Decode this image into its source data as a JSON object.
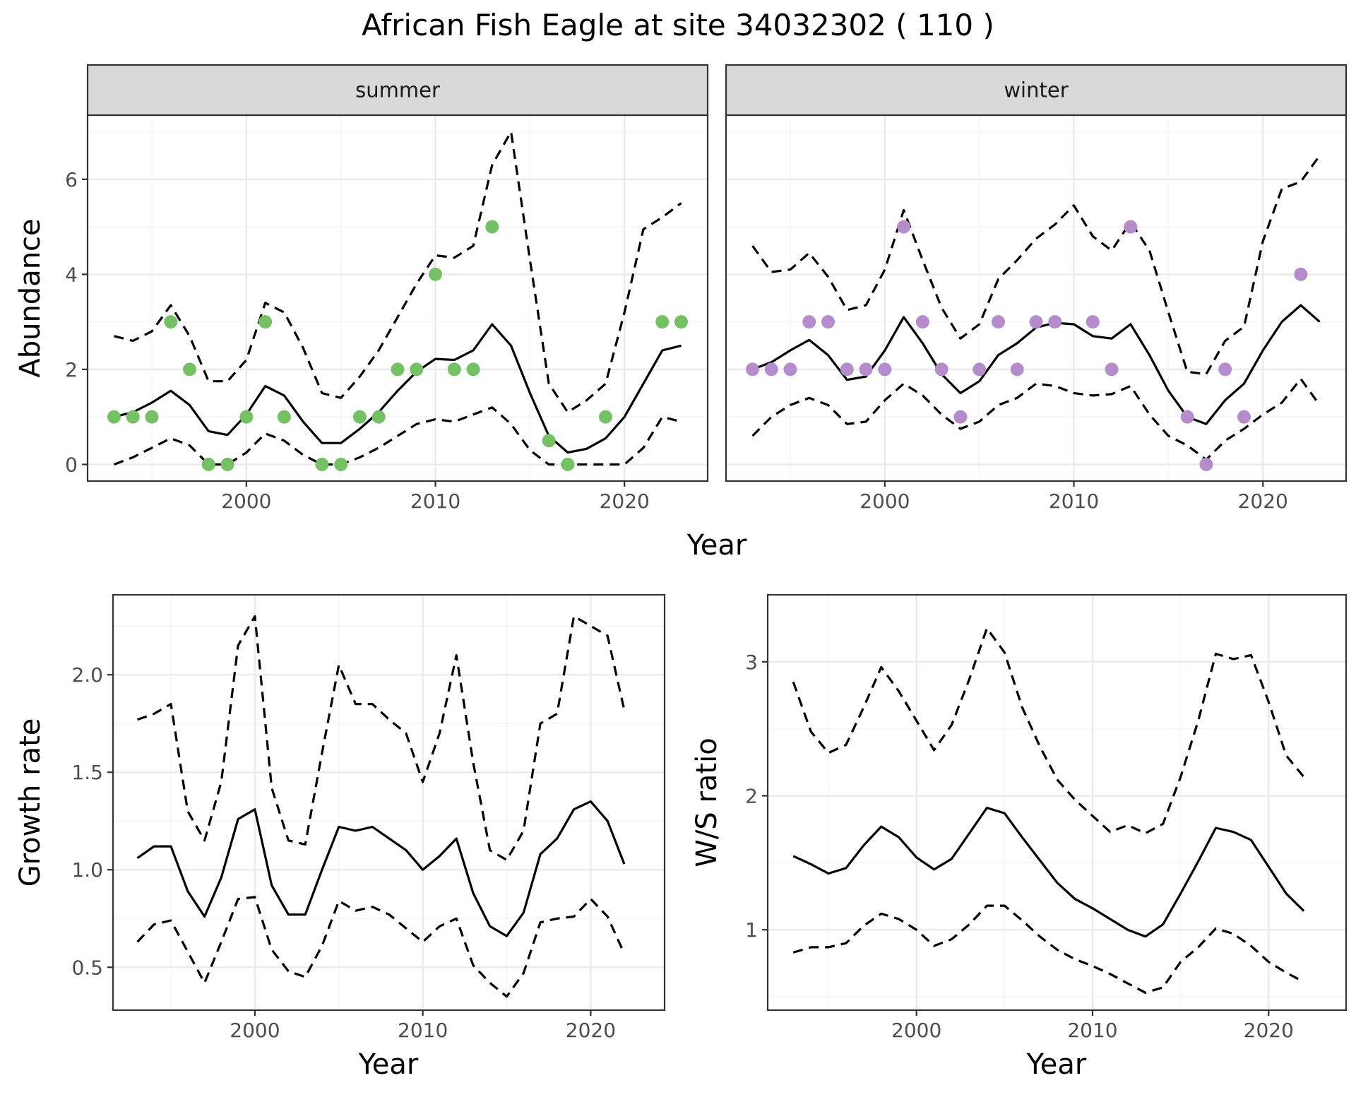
{
  "title": "African Fish Eagle at site 34032302 ( 110 )",
  "colors": {
    "summer_points": "#74c163",
    "winter_points": "#b48ccb",
    "lines": "#000000",
    "grid_major": "#ebebeb",
    "grid_minor": "#f5f5f5",
    "strip_fill": "#d9d9d9",
    "panel_border": "#333333"
  },
  "chart_data": [
    {
      "type": "line",
      "facet": "summer",
      "xlabel": "Year",
      "ylabel": "Abundance",
      "xlim": [
        1991.6,
        2024.4
      ],
      "ylim": [
        -0.35,
        7.35
      ],
      "x_ticks": [
        2000,
        2010,
        2020
      ],
      "y_ticks": [
        0,
        2,
        4,
        6
      ],
      "grid": true,
      "points": {
        "x": [
          1993,
          1994,
          1995,
          1996,
          1997,
          1998,
          1999,
          2000,
          2001,
          2002,
          2004,
          2005,
          2006,
          2007,
          2008,
          2009,
          2010,
          2011,
          2012,
          2013,
          2016,
          2017,
          2019,
          2022,
          2023
        ],
        "y": [
          1,
          1,
          1,
          3,
          2,
          0,
          0,
          1,
          3,
          1,
          0,
          0,
          1,
          1,
          2,
          2,
          4,
          2,
          2,
          5,
          0.5,
          0,
          1,
          3,
          3
        ]
      },
      "x": [
        1993,
        1994,
        1995,
        1996,
        1997,
        1998,
        1999,
        2000,
        2001,
        2002,
        2003,
        2004,
        2005,
        2006,
        2007,
        2008,
        2009,
        2010,
        2011,
        2012,
        2013,
        2014,
        2015,
        2016,
        2017,
        2018,
        2019,
        2020,
        2021,
        2022,
        2023
      ],
      "series": [
        {
          "role": "estimate",
          "style": "solid",
          "values": [
            1.0,
            1.1,
            1.3,
            1.55,
            1.25,
            0.7,
            0.62,
            1.05,
            1.65,
            1.45,
            0.9,
            0.45,
            0.45,
            0.75,
            1.1,
            1.55,
            1.95,
            2.22,
            2.2,
            2.4,
            2.95,
            2.5,
            1.5,
            0.6,
            0.25,
            0.33,
            0.55,
            1.0,
            1.7,
            2.4,
            2.5
          ]
        },
        {
          "role": "upper",
          "style": "dashed",
          "values": [
            2.7,
            2.6,
            2.8,
            3.35,
            2.7,
            1.75,
            1.75,
            2.2,
            3.4,
            3.2,
            2.45,
            1.5,
            1.4,
            1.85,
            2.4,
            3.1,
            3.8,
            4.4,
            4.35,
            4.6,
            6.3,
            7.0,
            4.3,
            1.7,
            1.1,
            1.35,
            1.7,
            3.2,
            4.95,
            5.2,
            5.5
          ]
        },
        {
          "role": "lower",
          "style": "dashed",
          "values": [
            0.0,
            0.15,
            0.35,
            0.55,
            0.4,
            0.0,
            0.0,
            0.25,
            0.65,
            0.5,
            0.2,
            0.0,
            0.0,
            0.15,
            0.35,
            0.6,
            0.85,
            0.95,
            0.9,
            1.05,
            1.2,
            0.85,
            0.3,
            0.0,
            0.0,
            0.0,
            0.0,
            0.0,
            0.35,
            1.0,
            0.9
          ]
        }
      ]
    },
    {
      "type": "line",
      "facet": "winter",
      "xlabel": "Year",
      "ylabel": "Abundance",
      "xlim": [
        1991.6,
        2024.4
      ],
      "ylim": [
        -0.35,
        7.35
      ],
      "x_ticks": [
        2000,
        2010,
        2020
      ],
      "y_ticks": [
        0,
        2,
        4,
        6
      ],
      "grid": true,
      "points": {
        "x": [
          1993,
          1994,
          1995,
          1996,
          1997,
          1998,
          1999,
          2000,
          2001,
          2002,
          2003,
          2004,
          2005,
          2006,
          2007,
          2008,
          2009,
          2011,
          2012,
          2013,
          2016,
          2017,
          2018,
          2019,
          2022
        ],
        "y": [
          2,
          2,
          2,
          3,
          3,
          2,
          2,
          2,
          5,
          3,
          2,
          1,
          2,
          3,
          2,
          3,
          3,
          3,
          2,
          5,
          1,
          0,
          2,
          1,
          4
        ]
      },
      "x": [
        1993,
        1994,
        1995,
        1996,
        1997,
        1998,
        1999,
        2000,
        2001,
        2002,
        2003,
        2004,
        2005,
        2006,
        2007,
        2008,
        2009,
        2010,
        2011,
        2012,
        2013,
        2014,
        2015,
        2016,
        2017,
        2018,
        2019,
        2020,
        2021,
        2022,
        2023
      ],
      "series": [
        {
          "role": "estimate",
          "style": "solid",
          "values": [
            2.0,
            2.15,
            2.4,
            2.62,
            2.3,
            1.78,
            1.85,
            2.4,
            3.1,
            2.55,
            1.9,
            1.5,
            1.75,
            2.3,
            2.55,
            2.88,
            2.98,
            2.95,
            2.7,
            2.65,
            2.95,
            2.3,
            1.55,
            1.0,
            0.85,
            1.35,
            1.7,
            2.4,
            3.0,
            3.35,
            3.0
          ]
        },
        {
          "role": "upper",
          "style": "dashed",
          "values": [
            4.6,
            4.05,
            4.1,
            4.45,
            3.95,
            3.25,
            3.35,
            4.1,
            5.35,
            4.3,
            3.3,
            2.65,
            2.95,
            3.9,
            4.3,
            4.75,
            5.05,
            5.45,
            4.8,
            4.5,
            5.1,
            4.5,
            3.2,
            1.95,
            1.9,
            2.6,
            2.9,
            4.7,
            5.8,
            5.95,
            6.5
          ]
        },
        {
          "role": "lower",
          "style": "dashed",
          "values": [
            0.6,
            1.0,
            1.25,
            1.4,
            1.25,
            0.85,
            0.9,
            1.35,
            1.7,
            1.45,
            1.05,
            0.75,
            0.9,
            1.25,
            1.4,
            1.7,
            1.65,
            1.5,
            1.45,
            1.48,
            1.65,
            1.05,
            0.6,
            0.4,
            0.1,
            0.5,
            0.75,
            1.05,
            1.3,
            1.8,
            1.25
          ]
        }
      ]
    },
    {
      "type": "line",
      "xlabel": "Year",
      "ylabel": "Growth rate",
      "xlim": [
        1991.55,
        2024.4
      ],
      "ylim": [
        0.28,
        2.41
      ],
      "x_ticks": [
        2000,
        2010,
        2020
      ],
      "y_ticks": [
        0.5,
        1.0,
        1.5,
        2.0
      ],
      "y_tick_labels": [
        "0.5",
        "1.0",
        "1.5",
        "2.0"
      ],
      "grid": true,
      "x": [
        1993,
        1994,
        1995,
        1996,
        1997,
        1998,
        1999,
        2000,
        2001,
        2002,
        2003,
        2004,
        2005,
        2006,
        2007,
        2008,
        2009,
        2010,
        2011,
        2012,
        2013,
        2014,
        2015,
        2016,
        2017,
        2018,
        2019,
        2020,
        2021,
        2022
      ],
      "series": [
        {
          "role": "estimate",
          "style": "solid",
          "values": [
            1.06,
            1.12,
            1.12,
            0.89,
            0.76,
            0.96,
            1.26,
            1.31,
            0.92,
            0.77,
            0.77,
            1.0,
            1.22,
            1.2,
            1.22,
            1.16,
            1.1,
            1.0,
            1.07,
            1.16,
            0.88,
            0.71,
            0.66,
            0.78,
            1.08,
            1.16,
            1.31,
            1.35,
            1.25,
            1.03
          ]
        },
        {
          "role": "upper",
          "style": "dashed",
          "values": [
            1.77,
            1.8,
            1.85,
            1.3,
            1.15,
            1.45,
            2.15,
            2.3,
            1.42,
            1.15,
            1.13,
            1.6,
            2.05,
            1.85,
            1.85,
            1.77,
            1.7,
            1.45,
            1.7,
            2.1,
            1.55,
            1.1,
            1.05,
            1.2,
            1.75,
            1.8,
            2.3,
            2.25,
            2.2,
            1.82
          ]
        },
        {
          "role": "lower",
          "style": "dashed",
          "values": [
            0.63,
            0.72,
            0.74,
            0.58,
            0.42,
            0.63,
            0.85,
            0.86,
            0.59,
            0.48,
            0.45,
            0.61,
            0.84,
            0.79,
            0.81,
            0.77,
            0.7,
            0.63,
            0.71,
            0.75,
            0.51,
            0.42,
            0.35,
            0.47,
            0.73,
            0.75,
            0.76,
            0.85,
            0.76,
            0.57
          ]
        }
      ]
    },
    {
      "type": "line",
      "xlabel": "Year",
      "ylabel": "W/S ratio",
      "xlim": [
        1991.55,
        2024.4
      ],
      "ylim": [
        0.4,
        3.5
      ],
      "x_ticks": [
        2000,
        2010,
        2020
      ],
      "y_ticks": [
        1,
        2,
        3
      ],
      "grid": true,
      "x": [
        1993,
        1994,
        1995,
        1996,
        1997,
        1998,
        1999,
        2000,
        2001,
        2002,
        2003,
        2004,
        2005,
        2006,
        2007,
        2008,
        2009,
        2010,
        2011,
        2012,
        2013,
        2014,
        2015,
        2016,
        2017,
        2018,
        2019,
        2020,
        2021,
        2022
      ],
      "series": [
        {
          "role": "estimate",
          "style": "solid",
          "values": [
            1.55,
            1.49,
            1.42,
            1.46,
            1.63,
            1.77,
            1.69,
            1.54,
            1.45,
            1.53,
            1.72,
            1.91,
            1.87,
            1.69,
            1.52,
            1.35,
            1.23,
            1.16,
            1.08,
            1.0,
            0.95,
            1.04,
            1.27,
            1.51,
            1.76,
            1.73,
            1.67,
            1.47,
            1.27,
            1.14
          ]
        },
        {
          "role": "upper",
          "style": "dashed",
          "values": [
            2.85,
            2.48,
            2.32,
            2.38,
            2.66,
            2.96,
            2.78,
            2.56,
            2.34,
            2.53,
            2.87,
            3.25,
            3.07,
            2.66,
            2.37,
            2.12,
            1.97,
            1.85,
            1.73,
            1.78,
            1.72,
            1.79,
            2.14,
            2.56,
            3.06,
            3.02,
            3.05,
            2.7,
            2.3,
            2.14
          ]
        },
        {
          "role": "lower",
          "style": "dashed",
          "values": [
            0.83,
            0.87,
            0.87,
            0.9,
            1.03,
            1.12,
            1.08,
            1.0,
            0.88,
            0.93,
            1.04,
            1.18,
            1.18,
            1.07,
            0.95,
            0.85,
            0.78,
            0.73,
            0.67,
            0.6,
            0.53,
            0.57,
            0.76,
            0.87,
            1.01,
            0.97,
            0.88,
            0.76,
            0.68,
            0.61
          ]
        }
      ]
    }
  ]
}
